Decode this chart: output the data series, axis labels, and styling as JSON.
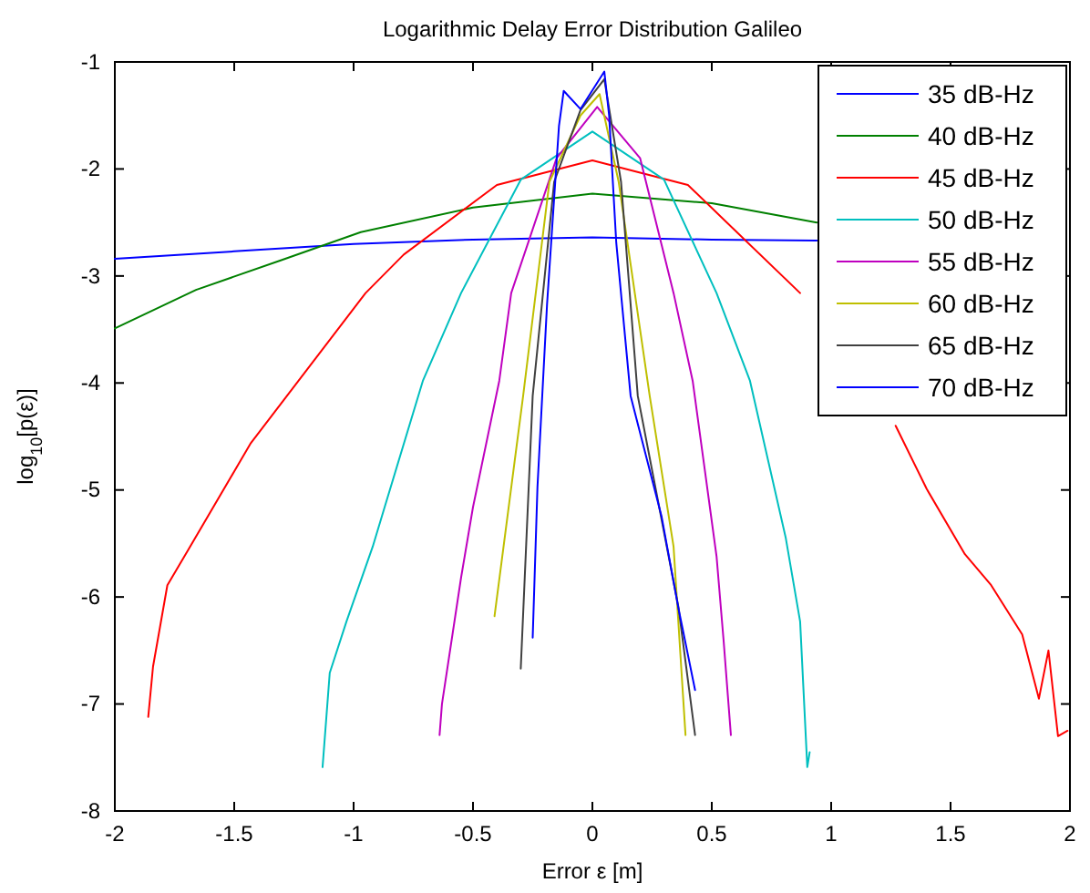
{
  "chart_data": {
    "type": "line",
    "title": "Logarithmic Delay Error Distribution Galileo",
    "xlabel": "Error ε [m]",
    "ylabel": "log$_{10}$[p(ε)]",
    "xlim": [
      -2,
      2
    ],
    "xticks": [
      -2,
      -1.5,
      -1,
      -0.5,
      0,
      0.5,
      1,
      1.5,
      2
    ],
    "ylim": [
      -8,
      -1
    ],
    "yticks": [
      -8,
      -7,
      -6,
      -5,
      -4,
      -3,
      -2,
      -1
    ],
    "grid": false,
    "legend": "top right",
    "marker": "none",
    "line_style": "solid",
    "series": [
      {
        "name": "35 dB-Hz",
        "color": "#0000ff",
        "x": [
          -2,
          -1.5,
          -1,
          -0.5,
          0,
          0.5,
          0.94
        ],
        "values": [
          -2.84,
          -2.77,
          -2.7,
          -2.66,
          -2.64,
          -2.66,
          -2.67
        ]
      },
      {
        "name": "40 dB-Hz",
        "color": "#008000",
        "x": [
          -2,
          -1.66,
          -1.3,
          -0.97,
          -0.5,
          0,
          0.5,
          0.94
        ],
        "values": [
          -3.49,
          -3.13,
          -2.85,
          -2.59,
          -2.36,
          -2.23,
          -2.32,
          -2.5
        ]
      },
      {
        "name": "45 dB-Hz",
        "color": "#ff0000",
        "x": [
          -1.86,
          -1.84,
          -1.78,
          -1.69,
          -1.43,
          -0.95,
          -0.79,
          -0.4,
          0,
          0.4,
          0.87,
          0.94,
          1.27,
          1.4,
          1.56,
          1.67,
          1.8,
          1.87,
          1.91,
          1.95,
          1.99
        ],
        "values": [
          -7.12,
          -6.65,
          -5.89,
          -5.55,
          -4.56,
          -3.16,
          -2.8,
          -2.15,
          -1.92,
          -2.15,
          -3.16,
          null,
          -4.4,
          -4.99,
          -5.6,
          -5.89,
          -6.35,
          -6.95,
          -6.5,
          -7.3,
          -7.25
        ]
      },
      {
        "name": "50 dB-Hz",
        "color": "#00bfbf",
        "x": [
          -1.13,
          -1.1,
          -1.03,
          -0.92,
          -0.87,
          -0.71,
          -0.55,
          -0.3,
          0,
          0.3,
          0.52,
          0.66,
          0.81,
          0.87,
          0.9,
          0.91
        ],
        "values": [
          -7.59,
          -6.71,
          -6.23,
          -5.53,
          -5.16,
          -3.98,
          -3.16,
          -2.1,
          -1.65,
          -2.1,
          -3.16,
          -3.98,
          -5.45,
          -6.23,
          -7.59,
          -7.45
        ]
      },
      {
        "name": "55 dB-Hz",
        "color": "#bf00bf",
        "x": [
          -0.64,
          -0.63,
          -0.55,
          -0.5,
          -0.39,
          -0.34,
          -0.15,
          0.02,
          0.2,
          0.34,
          0.42,
          0.52,
          0.55,
          0.58
        ],
        "values": [
          -7.29,
          -7.0,
          -5.82,
          -5.16,
          -3.98,
          -3.16,
          -1.9,
          -1.42,
          -1.9,
          -3.16,
          -3.98,
          -5.62,
          -6.42,
          -7.29
        ]
      },
      {
        "name": "60 dB-Hz",
        "color": "#bfbf00",
        "x": [
          -0.41,
          -0.29,
          -0.18,
          -0.05,
          0.03,
          0.11,
          0.24,
          0.34,
          0.39
        ],
        "values": [
          -6.18,
          -4.12,
          -2.12,
          -1.5,
          -1.3,
          -2.12,
          -4.12,
          -5.53,
          -7.29
        ]
      },
      {
        "name": "65 dB-Hz",
        "color": "#404040",
        "x": [
          -0.3,
          -0.25,
          -0.16,
          -0.05,
          0.05,
          0.12,
          0.19,
          0.36,
          0.43
        ],
        "values": [
          -6.67,
          -4.12,
          -2.12,
          -1.45,
          -1.16,
          -2.12,
          -4.12,
          -6.09,
          -7.29
        ]
      },
      {
        "name": "70 dB-Hz",
        "color": "#0000ff",
        "x": [
          -0.25,
          -0.23,
          -0.19,
          -0.14,
          -0.12,
          -0.05,
          0.05,
          0.07,
          0.1,
          0.16,
          0.29,
          0.36,
          0.43
        ],
        "values": [
          -6.38,
          -4.97,
          -3.27,
          -1.6,
          -1.27,
          -1.44,
          -1.09,
          -1.5,
          -2.69,
          -4.12,
          -5.25,
          -6.1,
          -6.87
        ]
      }
    ]
  }
}
